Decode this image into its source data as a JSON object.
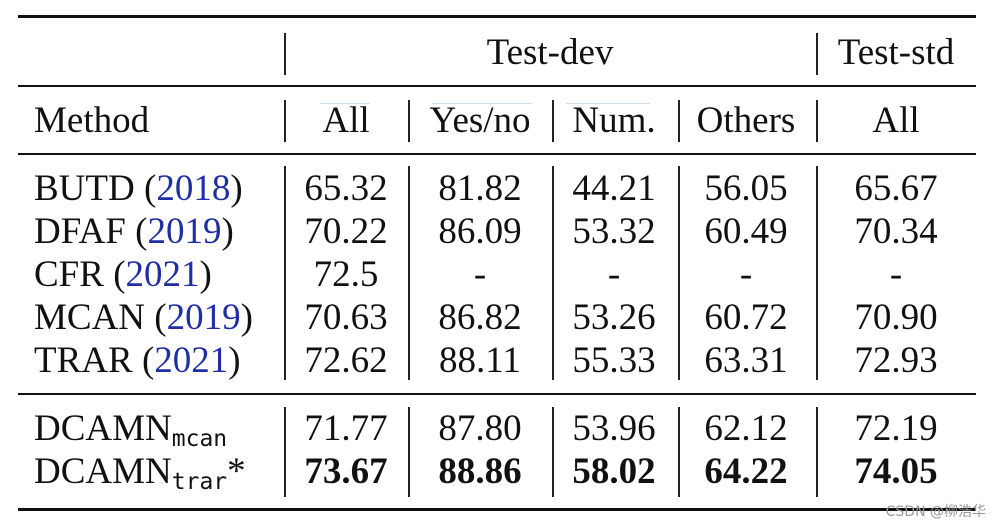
{
  "table": {
    "group_headers": {
      "test_dev": "Test-dev",
      "test_std": "Test-std"
    },
    "columns": {
      "method": "Method",
      "all_dev": "All",
      "yesno": "Yes/no",
      "num": "Num.",
      "others": "Others",
      "all_std": "All"
    },
    "rows": [
      {
        "name": "BUTD",
        "year": "2018",
        "all": "65.32",
        "yesno": "81.82",
        "num": "44.21",
        "others": "56.05",
        "std": "65.67"
      },
      {
        "name": "DFAF",
        "year": "2019",
        "all": "70.22",
        "yesno": "86.09",
        "num": "53.32",
        "others": "60.49",
        "std": "70.34"
      },
      {
        "name": "CFR",
        "year": "2021",
        "all": "72.5",
        "yesno": "-",
        "num": "-",
        "others": "-",
        "std": "-"
      },
      {
        "name": "MCAN",
        "year": "2019",
        "all": "70.63",
        "yesno": "86.82",
        "num": "53.26",
        "others": "60.72",
        "std": "70.90"
      },
      {
        "name": "TRAR",
        "year": "2021",
        "all": "72.62",
        "yesno": "88.11",
        "num": "55.33",
        "others": "63.31",
        "std": "72.93"
      }
    ],
    "ours": [
      {
        "name": "DCAMN",
        "sub": "mcan",
        "star": "",
        "all": "71.77",
        "yesno": "87.80",
        "num": "53.96",
        "others": "62.12",
        "std": "72.19"
      },
      {
        "name": "DCAMN",
        "sub": "trar",
        "star": "*",
        "all": "73.67",
        "yesno": "88.86",
        "num": "58.02",
        "others": "64.22",
        "std": "74.05"
      }
    ]
  },
  "watermark": "CSDN @柳浩华"
}
